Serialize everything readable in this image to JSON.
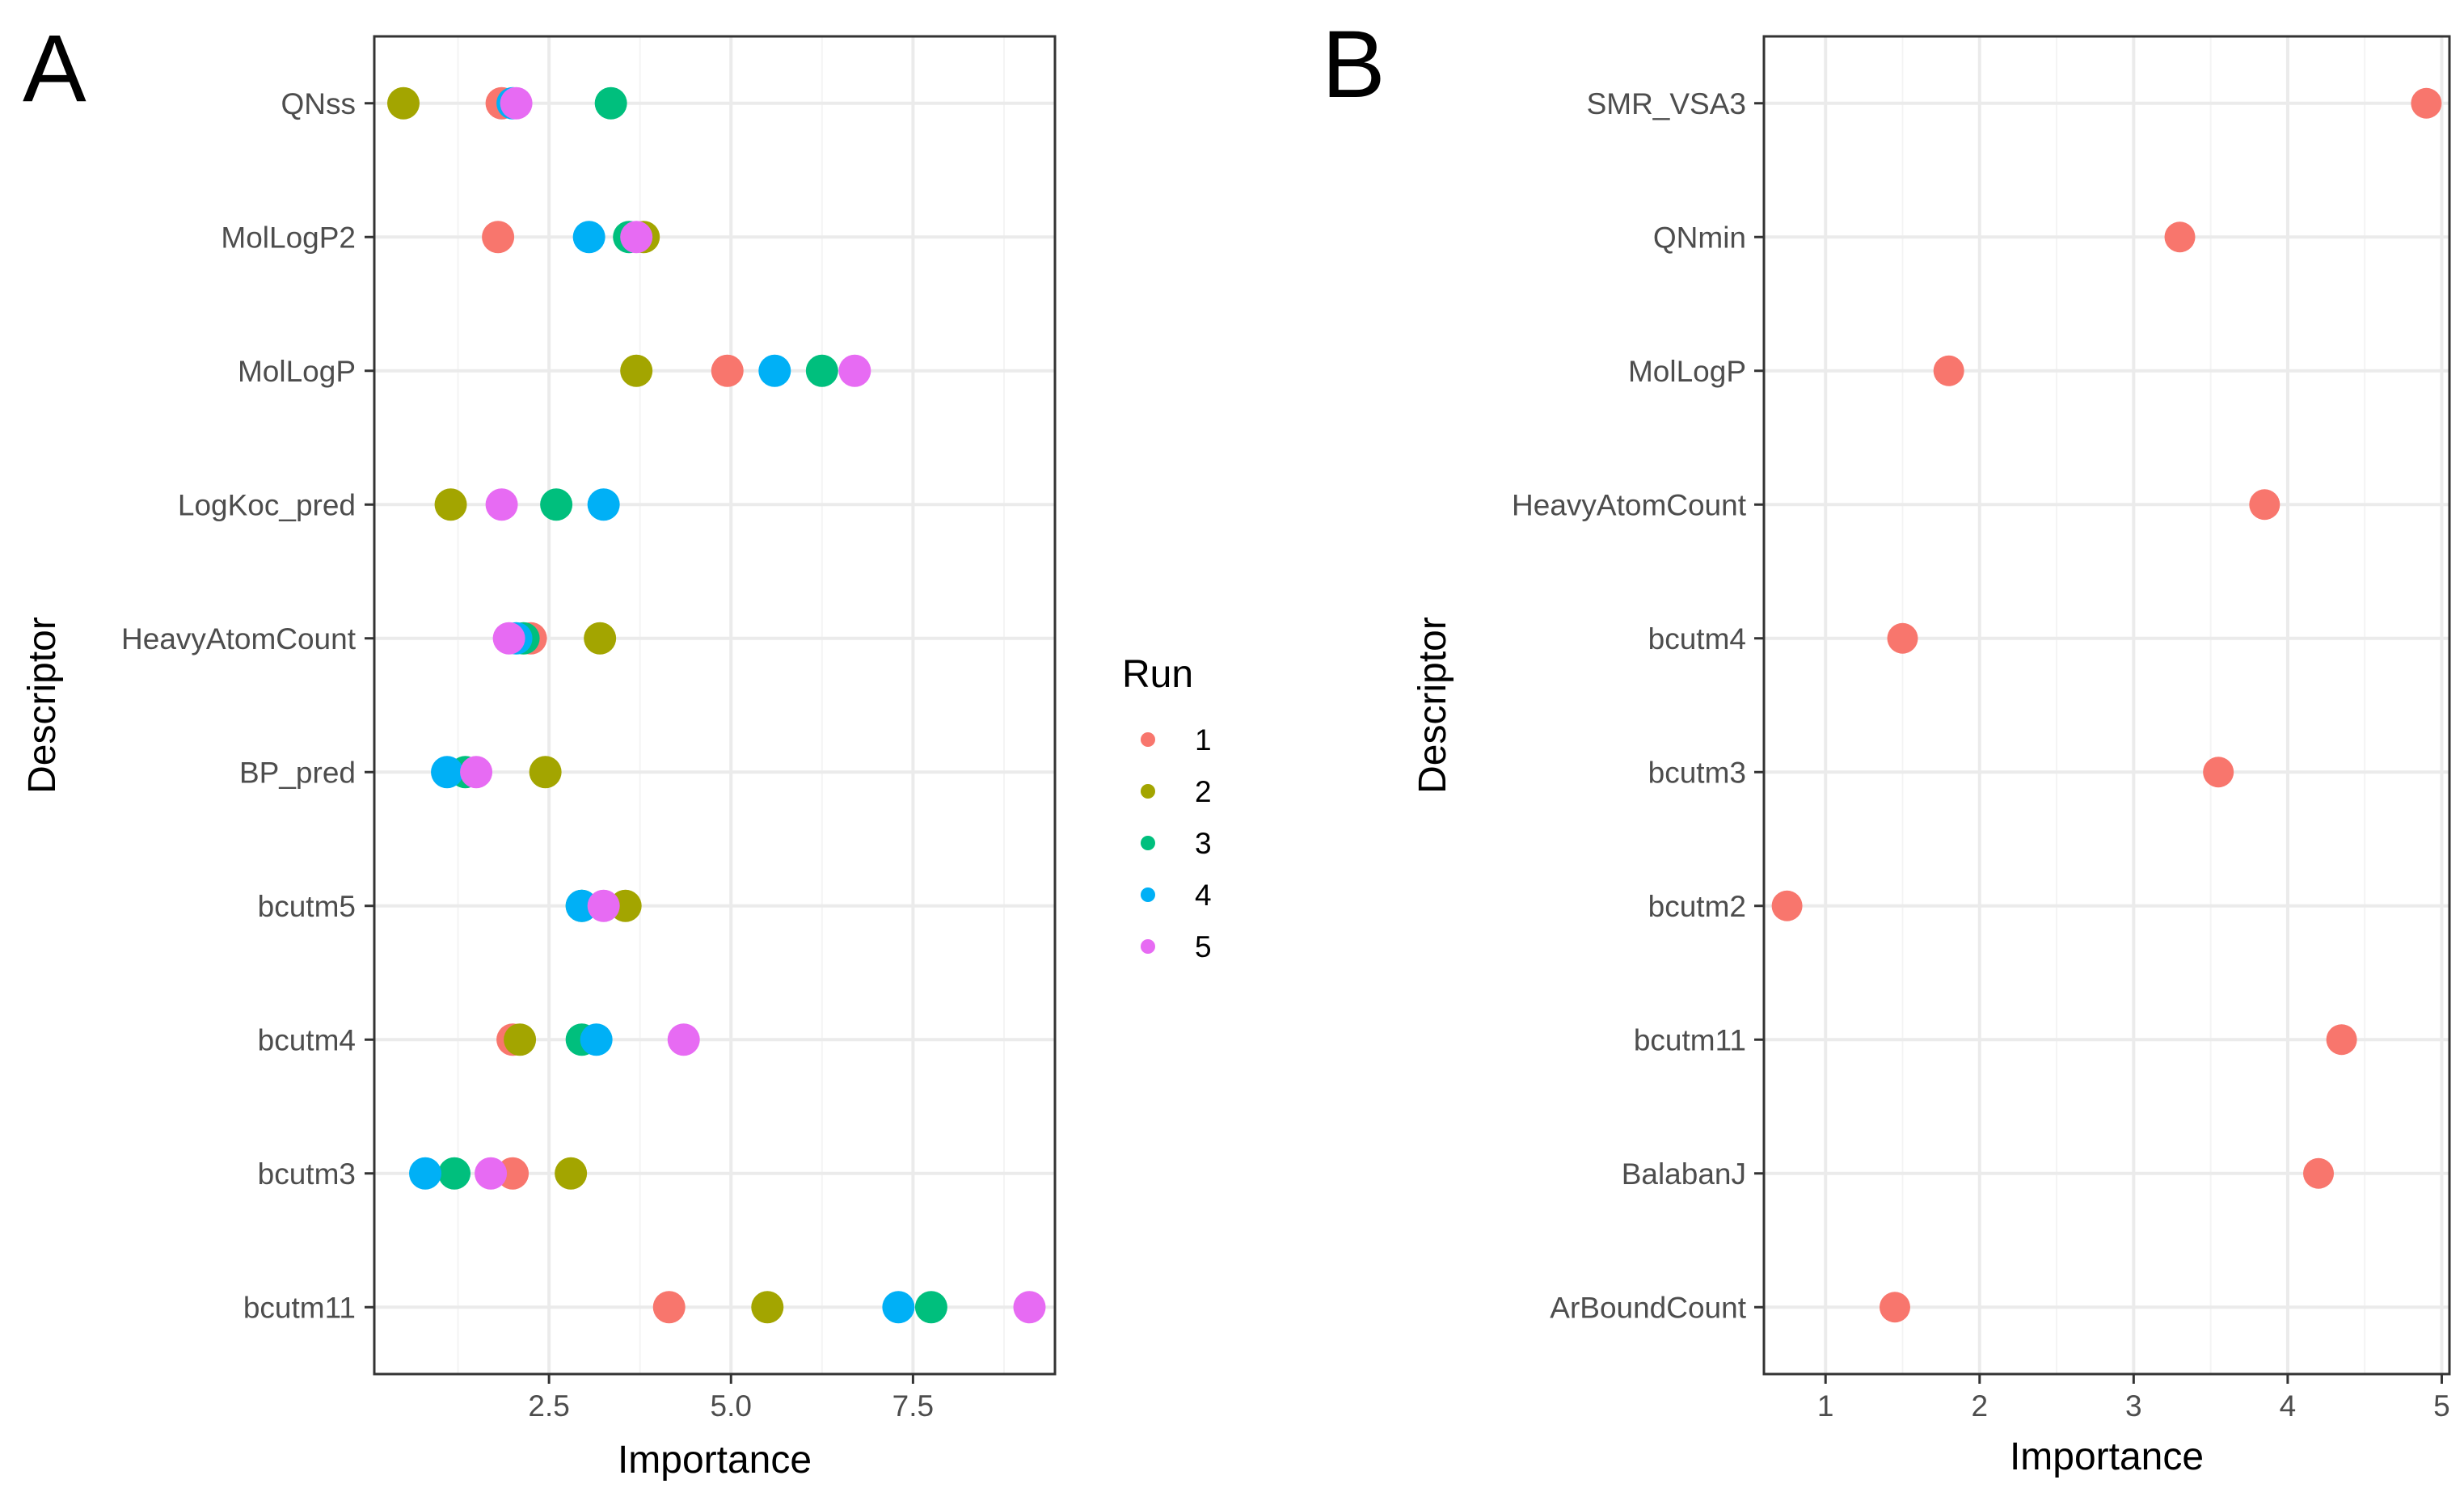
{
  "chart_data": [
    {
      "panel": "A",
      "type": "scatter",
      "xlabel": "Importance",
      "ylabel": "Descriptor",
      "xlim": [
        0.1,
        9.45
      ],
      "xticks": [
        2.5,
        5.0,
        7.5
      ],
      "xtick_labels": [
        "2.5",
        "5.0",
        "7.5"
      ],
      "grid": true,
      "legend": {
        "title": "Run",
        "position": "right",
        "entries": [
          "1",
          "2",
          "3",
          "4",
          "5"
        ]
      },
      "categories": [
        "QNss",
        "MolLogP2",
        "MolLogP",
        "LogKoc_pred",
        "HeavyAtomCount",
        "BP_pred",
        "bcutm5",
        "bcutm4",
        "bcutm3",
        "bcutm11"
      ],
      "series": [
        {
          "name": "1",
          "color": "#F8766D",
          "values": [
            1.85,
            1.8,
            4.95,
            null,
            2.25,
            null,
            null,
            2.0,
            2.0,
            4.15
          ]
        },
        {
          "name": "2",
          "color": "#A3A500",
          "values": [
            0.5,
            3.8,
            3.7,
            1.15,
            3.2,
            2.45,
            3.55,
            2.1,
            2.8,
            5.5
          ]
        },
        {
          "name": "3",
          "color": "#00BF7D",
          "values": [
            3.35,
            3.6,
            6.25,
            2.6,
            2.15,
            1.35,
            2.95,
            2.95,
            1.2,
            7.75
          ]
        },
        {
          "name": "4",
          "color": "#00B0F6",
          "values": [
            2.0,
            3.05,
            5.6,
            3.25,
            2.05,
            1.1,
            2.95,
            3.15,
            0.8,
            7.3
          ]
        },
        {
          "name": "5",
          "color": "#E76BF3",
          "values": [
            2.05,
            3.7,
            6.7,
            1.85,
            1.95,
            1.5,
            3.25,
            4.35,
            1.7,
            9.1
          ]
        }
      ]
    },
    {
      "panel": "B",
      "type": "scatter",
      "xlabel": "Importance",
      "ylabel": "Descriptor",
      "xlim": [
        0.6,
        5.05
      ],
      "xticks": [
        1,
        2,
        3,
        4,
        5
      ],
      "xtick_labels": [
        "1",
        "2",
        "3",
        "4",
        "5"
      ],
      "grid": true,
      "categories": [
        "SMR_VSA3",
        "QNmin",
        "MolLogP",
        "HeavyAtomCount",
        "bcutm4",
        "bcutm3",
        "bcutm2",
        "bcutm11",
        "BalabanJ",
        "ArBoundCount"
      ],
      "series": [
        {
          "name": "1",
          "color": "#F8766D",
          "values": [
            4.9,
            3.3,
            1.8,
            3.85,
            1.5,
            3.55,
            0.75,
            4.35,
            4.2,
            1.45
          ]
        }
      ]
    }
  ]
}
